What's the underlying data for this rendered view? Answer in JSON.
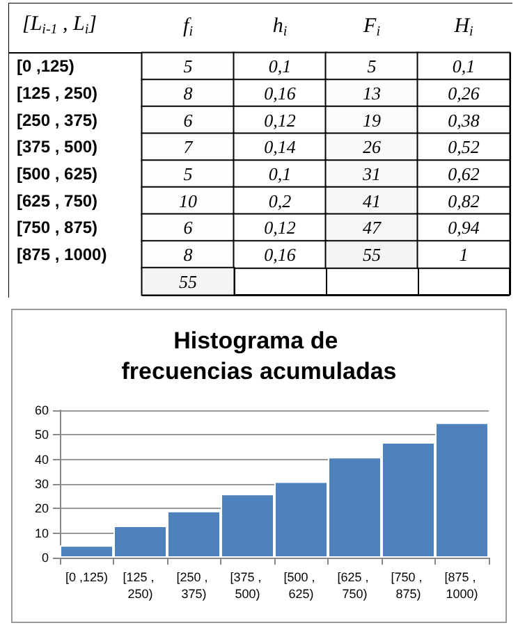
{
  "chart_data": [
    {
      "type": "heatmap",
      "ylabel": "[L$_{i-1}$ , L$_{i}$]",
      "categories": [
        "f$_{i}$",
        "h$_{i}$",
        "F$_{i}$",
        "H$_{i}$"
      ],
      "y_categories": [
        "[0 ,125)",
        "[125 , 250)",
        "[250 , 375)",
        "[375 , 500)",
        "[500 , 625)",
        "[625 , 750)",
        "[750 , 875)",
        "[875 , 1000)",
        null
      ],
      "cells": [
        [
          5,
          0.1,
          5,
          0.1
        ],
        [
          8,
          0.16,
          13,
          0.26
        ],
        [
          6,
          0.12,
          19,
          0.38
        ],
        [
          7,
          0.14,
          26,
          0.52
        ],
        [
          5,
          0.1,
          31,
          0.62
        ],
        [
          10,
          0.2,
          41,
          0.82
        ],
        [
          6,
          0.12,
          47,
          0.94
        ],
        [
          8,
          0.16,
          55,
          1
        ],
        [
          55,
          null,
          null,
          null
        ]
      ],
      "cell_labels": [
        [
          "5",
          "0,1",
          "5",
          "0,1"
        ],
        [
          "8",
          "0,16",
          "13",
          "0,26"
        ],
        [
          "6",
          "0,12",
          "19",
          "0,38"
        ],
        [
          "7",
          "0,14",
          "26",
          "0,52"
        ],
        [
          "5",
          "0,1",
          "31",
          "0,62"
        ],
        [
          "10",
          "0,2",
          "41",
          "0,82"
        ],
        [
          "6",
          "0,12",
          "47",
          "0,94"
        ],
        [
          "8",
          "0,16",
          "55",
          "1"
        ],
        [
          "55",
          null,
          null,
          null
        ]
      ]
    },
    {
      "type": "bar",
      "title": "Histograma de frecuencias acumuladas",
      "categories": [
        "[0 ,125)",
        "[125 , 250)",
        "[250 , 375)",
        "[375 , 500)",
        "[500 , 625)",
        "[625 , 750)",
        "[750 , 875)",
        "[875 , 1000)"
      ],
      "values": [
        5,
        13,
        19,
        26,
        31,
        41,
        47,
        55
      ],
      "color": "#4f81bd",
      "ylim": [
        0,
        60
      ],
      "yticks": [
        0,
        10,
        20,
        30,
        40,
        50,
        60
      ],
      "grid": "y"
    }
  ]
}
